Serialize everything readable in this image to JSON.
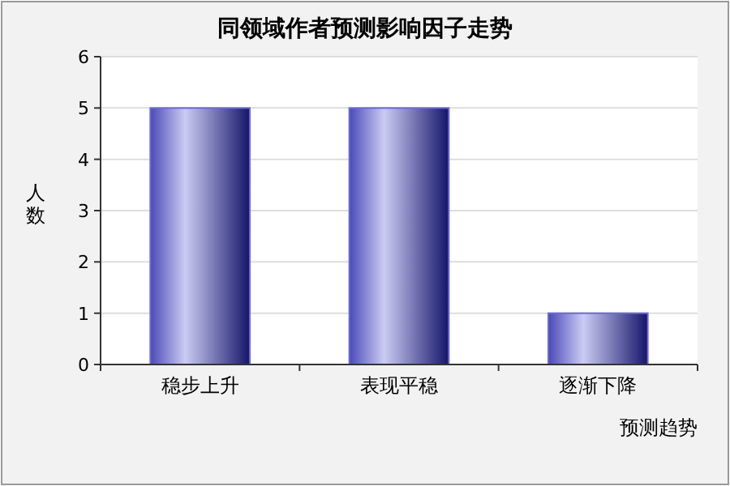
{
  "chart_data": {
    "type": "bar",
    "title": "同领域作者预测影响因子走势",
    "xlabel": "预测趋势",
    "ylabel": "人数",
    "categories": [
      "稳步上升",
      "表现平稳",
      "逐渐下降"
    ],
    "values": [
      5,
      5,
      1
    ],
    "color": "#6b6bd0",
    "ylim": [
      0,
      6
    ],
    "yticks": [
      0,
      1,
      2,
      3,
      4,
      5,
      6
    ],
    "grid": "y"
  }
}
